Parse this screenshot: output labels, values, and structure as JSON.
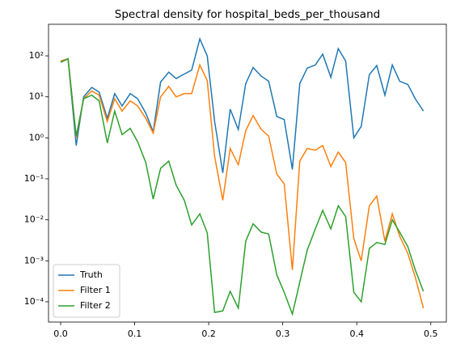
{
  "chart_data": {
    "type": "line",
    "title": "Spectral density for hospital_beds_per_thousand",
    "x": [
      0,
      0.01,
      0.021,
      0.031,
      0.042,
      0.052,
      0.063,
      0.073,
      0.083,
      0.094,
      0.104,
      0.115,
      0.125,
      0.135,
      0.146,
      0.156,
      0.167,
      0.177,
      0.188,
      0.198,
      0.208,
      0.219,
      0.229,
      0.24,
      0.25,
      0.26,
      0.271,
      0.281,
      0.292,
      0.302,
      0.313,
      0.323,
      0.333,
      0.344,
      0.354,
      0.365,
      0.375,
      0.385,
      0.396,
      0.406,
      0.417,
      0.427,
      0.438,
      0.448,
      0.458,
      0.469,
      0.479,
      0.49
    ],
    "series": [
      {
        "name": "Truth",
        "color": "#1f77b4",
        "values": [
          70,
          85,
          0.65,
          10,
          17,
          13,
          3,
          12,
          6,
          12,
          9,
          4,
          1.4,
          23,
          40,
          28,
          36,
          45,
          260,
          100,
          2.5,
          0.14,
          5,
          1.6,
          21,
          52,
          32,
          24,
          3.3,
          2.8,
          0.17,
          21,
          50,
          60,
          110,
          30,
          150,
          75,
          1.0,
          1.9,
          35,
          58,
          11,
          60,
          24,
          20,
          9,
          4.5
        ]
      },
      {
        "name": "Filter 1",
        "color": "#ff7f0e",
        "values": [
          75,
          85,
          1.0,
          9,
          14,
          11,
          2.5,
          9,
          4.5,
          8,
          6,
          3,
          1.3,
          10,
          18,
          10,
          12,
          12,
          60,
          25,
          0.35,
          0.03,
          0.55,
          0.22,
          1.5,
          3.5,
          1.6,
          1.1,
          0.13,
          0.075,
          0.0006,
          0.27,
          0.55,
          0.5,
          0.65,
          0.2,
          0.45,
          0.25,
          0.0035,
          0.001,
          0.022,
          0.038,
          0.003,
          0.014,
          0.004,
          0.0015,
          0.0004,
          7e-05
        ]
      },
      {
        "name": "Filter 2",
        "color": "#2ca02c",
        "values": [
          70,
          85,
          1.1,
          9,
          11,
          8,
          0.75,
          4.5,
          1.2,
          1.7,
          0.8,
          0.25,
          0.032,
          0.18,
          0.27,
          0.07,
          0.03,
          0.0075,
          0.014,
          0.0048,
          5.5e-05,
          6e-05,
          0.00018,
          7e-05,
          0.003,
          0.008,
          0.005,
          0.0045,
          0.00045,
          0.00017,
          5e-05,
          0.0003,
          0.0018,
          0.006,
          0.017,
          0.006,
          0.022,
          0.012,
          0.00017,
          0.0001,
          0.002,
          0.0028,
          0.0025,
          0.01,
          0.005,
          0.0022,
          0.0006,
          0.00018
        ]
      }
    ],
    "xlim": [
      -0.0164,
      0.521
    ],
    "ylim": [
      3.2e-05,
      590
    ],
    "ylog": true,
    "xticks": [
      {
        "value": 0,
        "label": "0.0"
      },
      0.1,
      0.2,
      0.3,
      0.4,
      0.5
    ],
    "yticks": [
      {
        "value": 0.0001,
        "label": "10⁻⁴"
      },
      {
        "value": 0.001,
        "label": "10⁻³"
      },
      {
        "value": 0.01,
        "label": "10⁻²"
      },
      {
        "value": 0.1,
        "label": "10⁻¹"
      },
      {
        "value": 1,
        "label": "10⁰"
      },
      {
        "value": 10,
        "label": "10¹"
      },
      {
        "value": 100,
        "label": "10²"
      }
    ],
    "legend": "lower left"
  }
}
